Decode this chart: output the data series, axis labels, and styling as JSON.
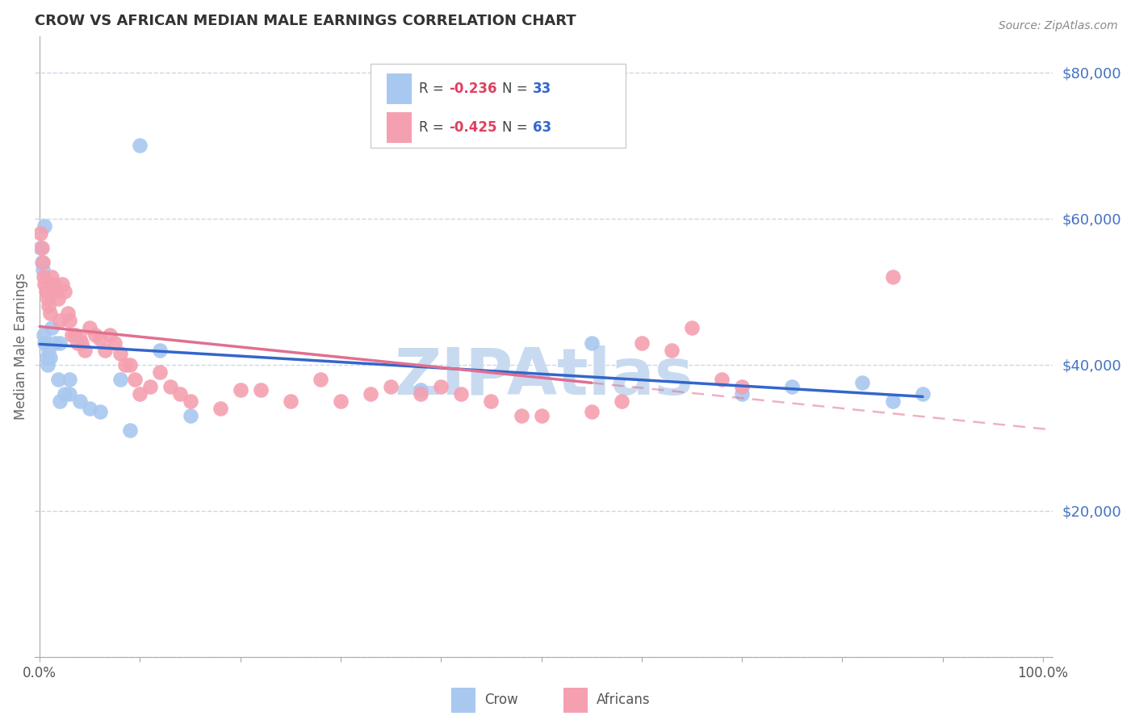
{
  "title": "CROW VS AFRICAN MEDIAN MALE EARNINGS CORRELATION CHART",
  "source": "Source: ZipAtlas.com",
  "ylabel": "Median Male Earnings",
  "ymin": 0,
  "ymax": 85000,
  "xmin": -0.005,
  "xmax": 1.01,
  "crow_R": -0.236,
  "crow_N": 33,
  "african_R": -0.425,
  "african_N": 63,
  "crow_color": "#a8c8f0",
  "african_color": "#f4a0b0",
  "crow_line_color": "#3366cc",
  "african_line_color": "#e07090",
  "crow_x": [
    0.001,
    0.002,
    0.003,
    0.004,
    0.005,
    0.007,
    0.009,
    0.012,
    0.015,
    0.018,
    0.02,
    0.025,
    0.03,
    0.04,
    0.05,
    0.06,
    0.08,
    0.09,
    0.12,
    0.15,
    0.38,
    0.55,
    0.7,
    0.75,
    0.82,
    0.85,
    0.88,
    0.005,
    0.008,
    0.01,
    0.02,
    0.03,
    0.1
  ],
  "crow_y": [
    56000,
    54000,
    53000,
    44000,
    43000,
    41000,
    42000,
    45000,
    43000,
    38000,
    43000,
    36000,
    36000,
    35000,
    34000,
    33500,
    38000,
    31000,
    42000,
    33000,
    36500,
    43000,
    36000,
    37000,
    37500,
    35000,
    36000,
    59000,
    40000,
    41000,
    35000,
    38000,
    70000
  ],
  "african_x": [
    0.001,
    0.002,
    0.003,
    0.004,
    0.005,
    0.006,
    0.007,
    0.008,
    0.009,
    0.01,
    0.012,
    0.014,
    0.016,
    0.018,
    0.02,
    0.022,
    0.025,
    0.028,
    0.03,
    0.032,
    0.035,
    0.038,
    0.04,
    0.042,
    0.045,
    0.05,
    0.055,
    0.06,
    0.065,
    0.07,
    0.075,
    0.08,
    0.085,
    0.09,
    0.095,
    0.1,
    0.11,
    0.12,
    0.13,
    0.14,
    0.15,
    0.18,
    0.2,
    0.22,
    0.25,
    0.28,
    0.3,
    0.33,
    0.35,
    0.38,
    0.4,
    0.42,
    0.45,
    0.48,
    0.5,
    0.55,
    0.58,
    0.6,
    0.63,
    0.65,
    0.68,
    0.7,
    0.85
  ],
  "african_y": [
    58000,
    56000,
    54000,
    52000,
    51000,
    50000,
    50000,
    49000,
    48000,
    47000,
    52000,
    51000,
    50000,
    49000,
    46000,
    51000,
    50000,
    47000,
    46000,
    44000,
    44000,
    43000,
    43500,
    43000,
    42000,
    45000,
    44000,
    43500,
    42000,
    44000,
    43000,
    41500,
    40000,
    40000,
    38000,
    36000,
    37000,
    39000,
    37000,
    36000,
    35000,
    34000,
    36500,
    36500,
    35000,
    38000,
    35000,
    36000,
    37000,
    36000,
    37000,
    36000,
    35000,
    33000,
    33000,
    33500,
    35000,
    43000,
    42000,
    45000,
    38000,
    37000,
    52000
  ],
  "background_color": "#ffffff",
  "grid_color": "#c8d8e8",
  "watermark": "ZIPAtlas",
  "watermark_color": "#c8daf0",
  "yticks": [
    0,
    20000,
    40000,
    60000,
    80000
  ],
  "ytick_labels": [
    "",
    "$20,000",
    "$40,000",
    "$60,000",
    "$80,000"
  ],
  "legend_R_color": "#e04060",
  "legend_N_color": "#3366cc",
  "legend_text_color": "#444444"
}
